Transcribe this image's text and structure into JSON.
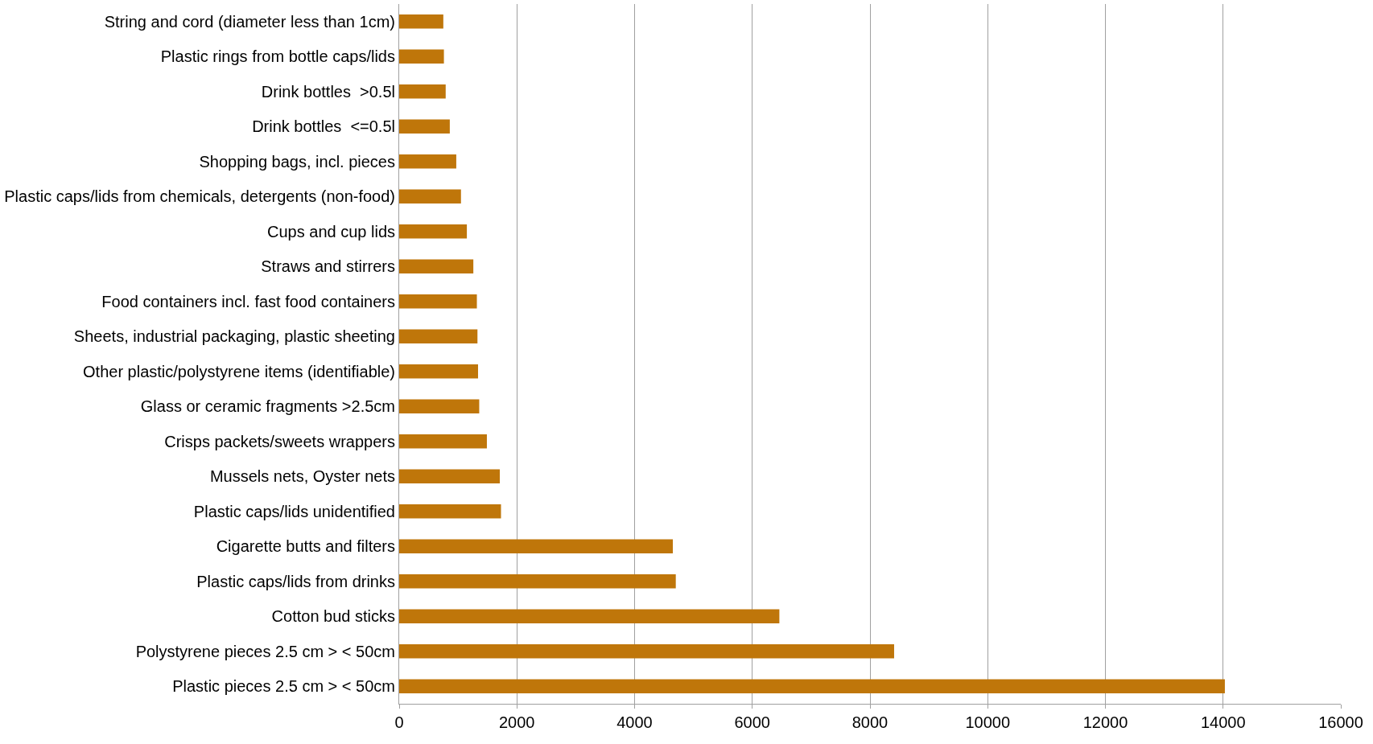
{
  "chart_data": {
    "type": "bar",
    "orientation": "horizontal",
    "categories": [
      "String and cord (diameter less than 1cm)",
      "Plastic rings from bottle caps/lids",
      "Drink bottles  >0.5l",
      "Drink bottles  <=0.5l",
      "Shopping bags, incl. pieces",
      "Plastic caps/lids from chemicals, detergents (non-food)",
      "Cups and cup lids",
      "Straws and stirrers",
      "Food containers incl. fast food containers",
      "Sheets, industrial packaging, plastic sheeting",
      "Other plastic/polystyrene items (identifiable)",
      "Glass or ceramic fragments >2.5cm",
      "Crisps packets/sweets wrappers",
      "Mussels nets, Oyster nets",
      "Plastic caps/lids unidentified",
      "Cigarette butts and filters",
      "Plastic caps/lids from drinks",
      "Cotton bud sticks",
      "Polystyrene pieces 2.5 cm > < 50cm",
      "Plastic pieces 2.5 cm > < 50cm"
    ],
    "values": [
      750,
      760,
      790,
      860,
      970,
      1050,
      1150,
      1260,
      1320,
      1330,
      1340,
      1360,
      1490,
      1710,
      1730,
      4650,
      4700,
      6460,
      8410,
      14030
    ],
    "color": "#bf760a",
    "xlim": [
      0,
      16000
    ],
    "xticks": [
      0,
      2000,
      4000,
      6000,
      8000,
      10000,
      12000,
      14000,
      16000
    ],
    "grid": "x",
    "legend": false
  }
}
